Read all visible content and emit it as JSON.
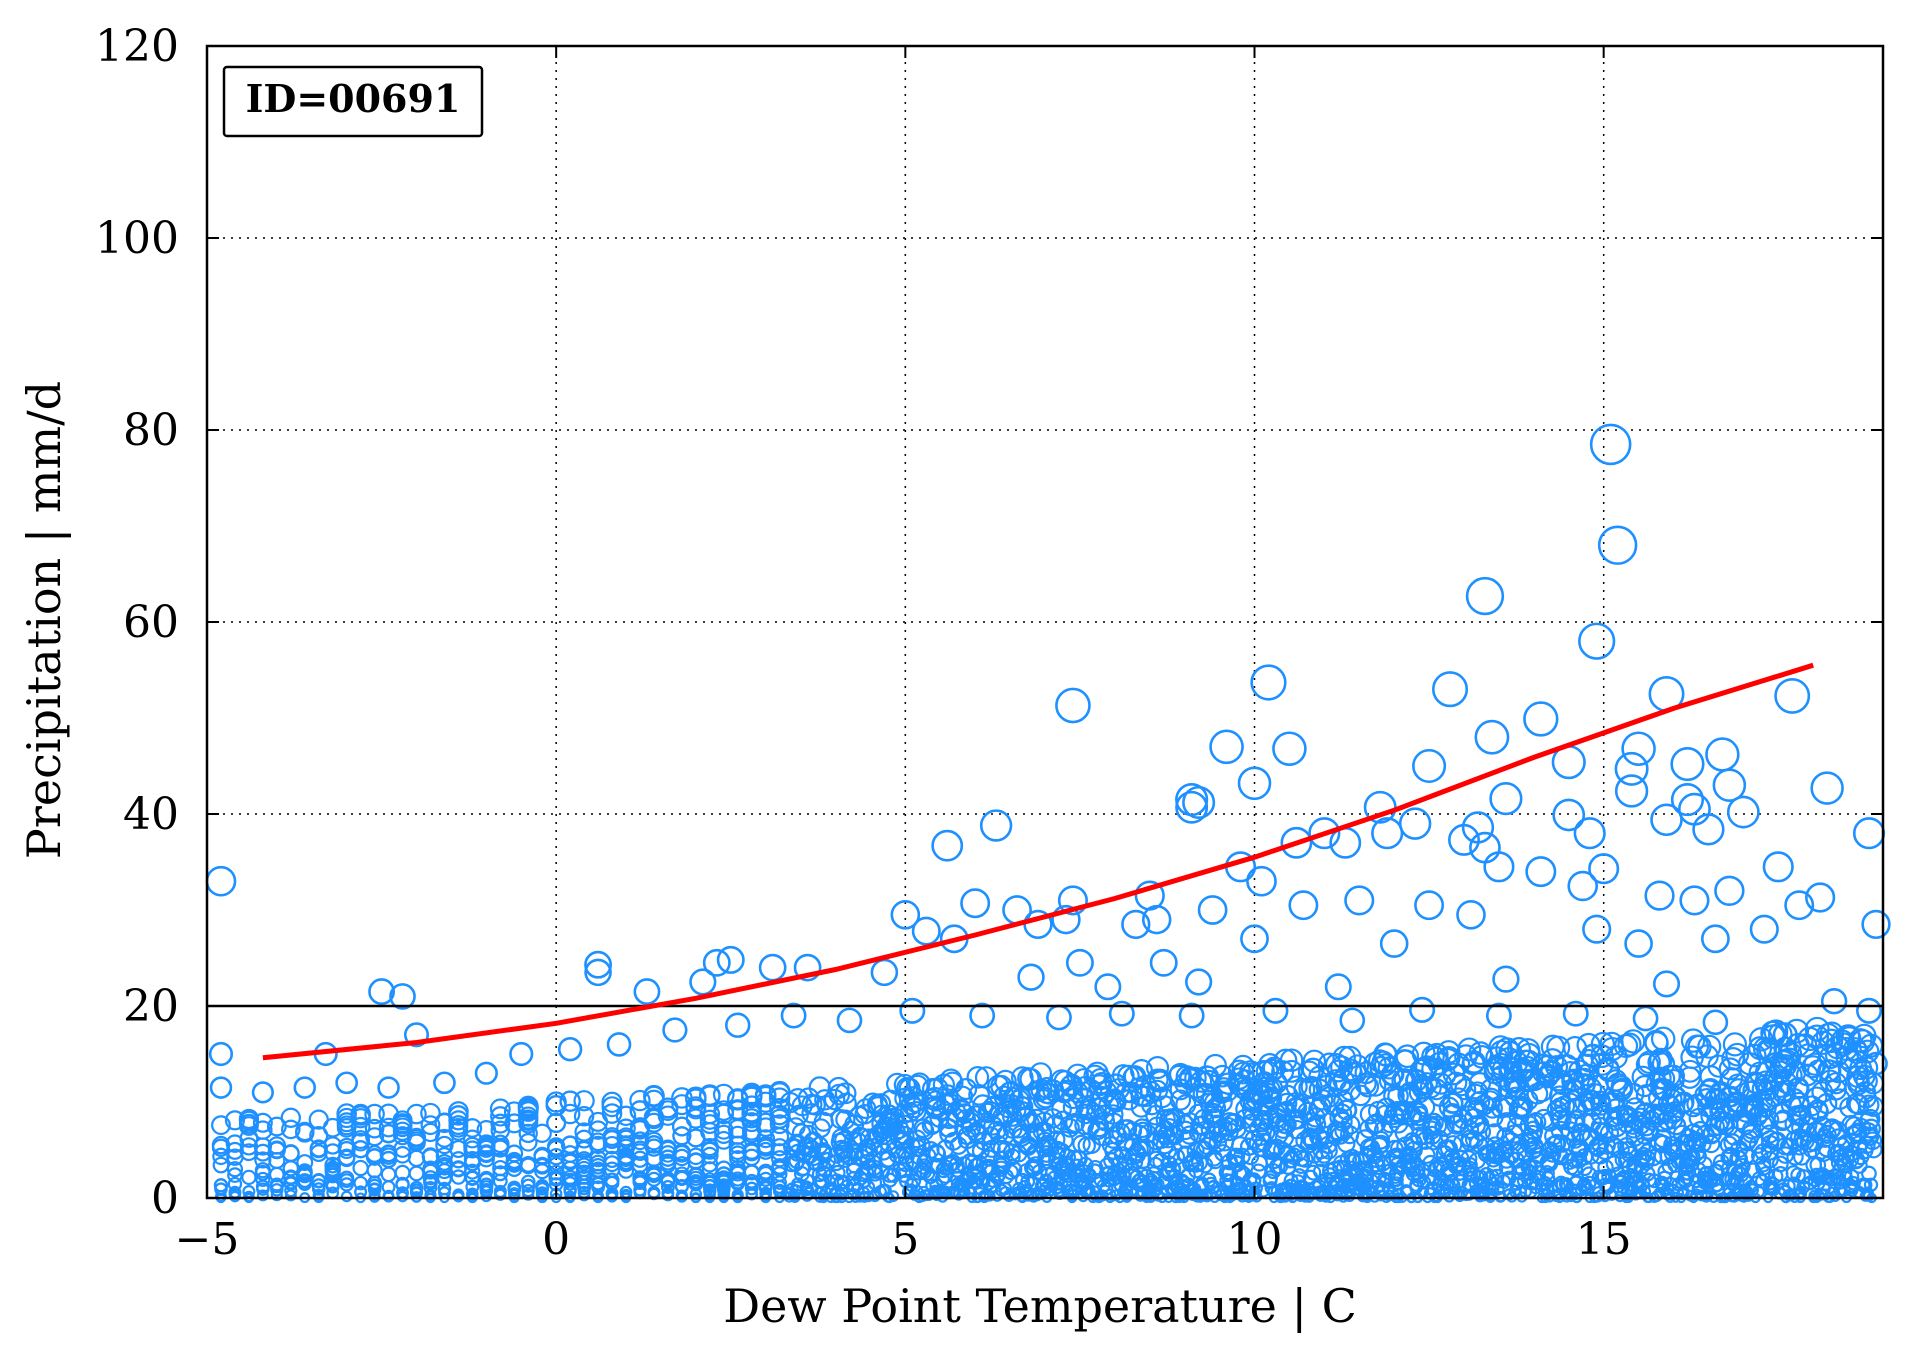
{
  "chart_data": {
    "type": "scatter",
    "xlabel": "Dew Point Temperature | C",
    "ylabel": "Precipitation | mm/d",
    "xlim": [
      -5,
      19
    ],
    "ylim": [
      0,
      120
    ],
    "xticks": [
      -5,
      0,
      5,
      10,
      15
    ],
    "xtick_labels": [
      "−5",
      "0",
      "5",
      "10",
      "15"
    ],
    "yticks": [
      0,
      20,
      40,
      60,
      80,
      100,
      120
    ],
    "ytick_labels": [
      "0",
      "20",
      "40",
      "60",
      "80",
      "100",
      "120"
    ],
    "grid": true,
    "grid_style": "dotted",
    "annotation": "ID=00691",
    "reference_line_y": 20,
    "colors": {
      "points": "#1e90ff",
      "fit_line": "#ff0000",
      "reference_line": "#000000"
    },
    "series": [
      {
        "kind": "scatter",
        "marker": "open-circle",
        "note_size": "marker size grows with precipitation value",
        "points": [
          [
            -4.8,
            33.0
          ],
          [
            -2.5,
            21.5
          ],
          [
            -2.2,
            21.0
          ],
          [
            -3.3,
            15.0
          ],
          [
            -2.0,
            17.0
          ],
          [
            0.6,
            23.5
          ],
          [
            0.6,
            24.3
          ],
          [
            1.3,
            21.5
          ],
          [
            2.1,
            22.5
          ],
          [
            2.3,
            24.5
          ],
          [
            2.5,
            24.8
          ],
          [
            3.1,
            24.0
          ],
          [
            3.6,
            24.0
          ],
          [
            4.7,
            23.5
          ],
          [
            5.0,
            29.5
          ],
          [
            5.3,
            27.8
          ],
          [
            5.6,
            36.7
          ],
          [
            5.7,
            27.0
          ],
          [
            6.0,
            30.7
          ],
          [
            6.3,
            38.8
          ],
          [
            6.6,
            30.0
          ],
          [
            6.9,
            28.5
          ],
          [
            7.3,
            29.0
          ],
          [
            7.4,
            51.3
          ],
          [
            7.4,
            31.0
          ],
          [
            7.5,
            24.5
          ],
          [
            8.5,
            31.5
          ],
          [
            8.3,
            28.5
          ],
          [
            9.1,
            41.5
          ],
          [
            9.1,
            40.7
          ],
          [
            9.2,
            41.2
          ],
          [
            9.6,
            47.0
          ],
          [
            9.8,
            34.5
          ],
          [
            10.0,
            43.2
          ],
          [
            10.2,
            53.7
          ],
          [
            10.5,
            46.8
          ],
          [
            10.6,
            37.0
          ],
          [
            11.0,
            38.0
          ],
          [
            11.3,
            37.0
          ],
          [
            11.8,
            40.7
          ],
          [
            11.9,
            38.0
          ],
          [
            12.3,
            39.0
          ],
          [
            12.5,
            45.0
          ],
          [
            12.8,
            53.0
          ],
          [
            13.0,
            37.3
          ],
          [
            13.2,
            38.6
          ],
          [
            13.3,
            36.5
          ],
          [
            13.3,
            62.7
          ],
          [
            13.4,
            48.0
          ],
          [
            13.6,
            41.6
          ],
          [
            13.5,
            34.5
          ],
          [
            14.1,
            49.9
          ],
          [
            14.1,
            34.0
          ],
          [
            14.5,
            45.4
          ],
          [
            14.5,
            39.9
          ],
          [
            14.8,
            38.0
          ],
          [
            14.9,
            58.0
          ],
          [
            15.1,
            78.5
          ],
          [
            15.2,
            68.0
          ],
          [
            15.0,
            34.3
          ],
          [
            15.4,
            44.7
          ],
          [
            15.4,
            42.4
          ],
          [
            15.5,
            46.8
          ],
          [
            15.9,
            52.5
          ],
          [
            15.9,
            39.4
          ],
          [
            16.2,
            45.2
          ],
          [
            16.2,
            41.5
          ],
          [
            16.3,
            40.5
          ],
          [
            16.5,
            38.4
          ],
          [
            16.7,
            46.2
          ],
          [
            16.8,
            43.0
          ],
          [
            17.0,
            40.2
          ],
          [
            17.7,
            52.3
          ],
          [
            18.2,
            42.7
          ],
          [
            18.8,
            38.0
          ],
          [
            17.5,
            34.5
          ],
          [
            16.3,
            31.0
          ],
          [
            15.8,
            31.5
          ],
          [
            16.8,
            32.0
          ],
          [
            14.7,
            32.5
          ],
          [
            14.9,
            28.0
          ],
          [
            12.5,
            30.5
          ],
          [
            13.1,
            29.5
          ],
          [
            11.5,
            31.0
          ],
          [
            10.7,
            30.5
          ],
          [
            10.1,
            33.0
          ],
          [
            9.4,
            30.0
          ],
          [
            8.6,
            29.0
          ],
          [
            18.1,
            31.3
          ],
          [
            17.8,
            30.5
          ],
          [
            18.9,
            28.5
          ],
          [
            17.3,
            28.0
          ],
          [
            16.6,
            27.0
          ],
          [
            15.5,
            26.5
          ],
          [
            12.0,
            26.5
          ],
          [
            10.0,
            27.0
          ],
          [
            8.7,
            24.5
          ],
          [
            7.9,
            22.0
          ],
          [
            6.8,
            23.0
          ],
          [
            9.2,
            22.5
          ],
          [
            11.2,
            22.0
          ],
          [
            13.6,
            22.8
          ],
          [
            15.9,
            22.3
          ],
          [
            18.3,
            20.5
          ],
          [
            18.8,
            19.5
          ],
          [
            -4.8,
            15.0
          ],
          [
            -4.8,
            11.5
          ],
          [
            -4.2,
            11.0
          ],
          [
            -3.6,
            11.5
          ],
          [
            -3.0,
            12.0
          ],
          [
            -2.4,
            11.5
          ],
          [
            -1.6,
            12.0
          ],
          [
            -1.0,
            13.0
          ],
          [
            -0.5,
            15.0
          ],
          [
            0.2,
            15.5
          ],
          [
            0.9,
            16.0
          ],
          [
            1.7,
            17.5
          ],
          [
            2.6,
            18.0
          ],
          [
            3.4,
            19.0
          ],
          [
            4.2,
            18.5
          ],
          [
            5.1,
            19.5
          ],
          [
            6.1,
            19.0
          ],
          [
            7.2,
            18.8
          ],
          [
            8.1,
            19.2
          ],
          [
            9.1,
            19.0
          ],
          [
            10.3,
            19.5
          ],
          [
            11.4,
            18.5
          ],
          [
            12.4,
            19.6
          ],
          [
            13.5,
            19.0
          ],
          [
            14.6,
            19.2
          ],
          [
            15.6,
            18.7
          ],
          [
            16.6,
            18.3
          ],
          [
            17.6,
            17.0
          ],
          [
            18.5,
            16.8
          ],
          [
            18.9,
            14.0
          ]
        ]
      },
      {
        "kind": "line",
        "note": "exponential fit",
        "points": [
          [
            -4.2,
            14.6
          ],
          [
            -2,
            16.2
          ],
          [
            0,
            18.2
          ],
          [
            2,
            20.8
          ],
          [
            4,
            23.8
          ],
          [
            6,
            27.4
          ],
          [
            8,
            31.2
          ],
          [
            10,
            35.5
          ],
          [
            12,
            40.4
          ],
          [
            14,
            45.9
          ],
          [
            16,
            51.0
          ],
          [
            18,
            55.5
          ]
        ]
      }
    ]
  }
}
